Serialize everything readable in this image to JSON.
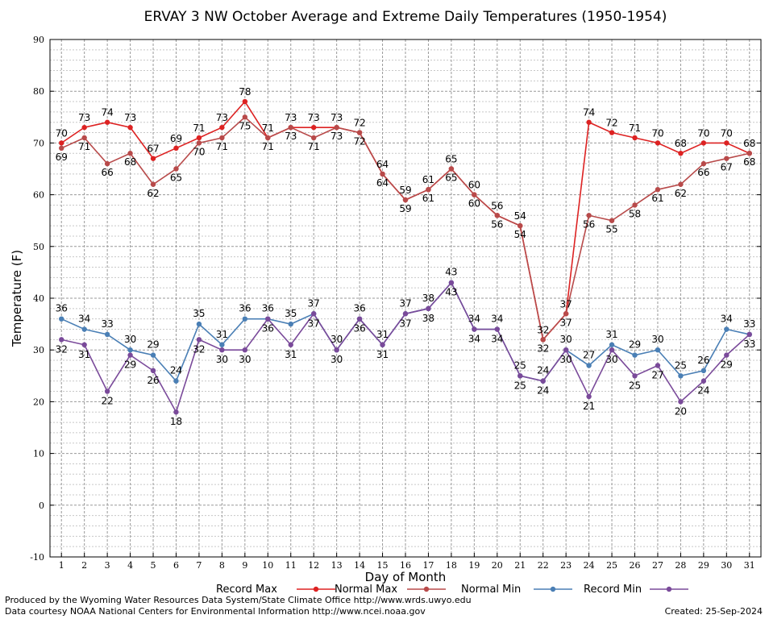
{
  "chart_data": {
    "type": "line",
    "title": "ERVAY 3 NW October Average and Extreme Daily Temperatures (1950-1954)",
    "xlabel": "Day of Month",
    "ylabel": "Temperature (F)",
    "ylim": [
      -10,
      90
    ],
    "yticks": [
      -10,
      0,
      10,
      20,
      30,
      40,
      50,
      60,
      70,
      80,
      90
    ],
    "x": [
      1,
      2,
      3,
      4,
      5,
      6,
      7,
      8,
      9,
      10,
      11,
      12,
      13,
      14,
      15,
      16,
      17,
      18,
      19,
      20,
      21,
      22,
      23,
      24,
      25,
      26,
      27,
      28,
      29,
      30,
      31
    ],
    "grid": true,
    "legend_position": "bottom",
    "series": [
      {
        "name": "Record Max",
        "color": "#dd2222",
        "values": [
          70,
          73,
          74,
          73,
          67,
          69,
          71,
          73,
          78,
          71,
          73,
          73,
          73,
          72,
          64,
          59,
          61,
          65,
          60,
          56,
          54,
          32,
          37,
          74,
          72,
          71,
          70,
          68,
          70,
          70,
          68
        ]
      },
      {
        "name": "Normal Max",
        "color": "#b84a4a",
        "values": [
          69,
          71,
          66,
          68,
          62,
          65,
          70,
          71,
          75,
          71,
          73,
          71,
          73,
          72,
          64,
          59,
          61,
          65,
          60,
          56,
          54,
          32,
          37,
          56,
          55,
          58,
          61,
          62,
          66,
          67,
          68
        ]
      },
      {
        "name": "Normal Min",
        "color": "#4a7fb5",
        "values": [
          36,
          34,
          33,
          30,
          29,
          24,
          35,
          31,
          36,
          36,
          35,
          37,
          30,
          36,
          31,
          37,
          38,
          43,
          34,
          34,
          25,
          24,
          30,
          27,
          31,
          29,
          30,
          25,
          26,
          34,
          33
        ]
      },
      {
        "name": "Record Min",
        "color": "#7a4a9a",
        "values": [
          32,
          31,
          22,
          29,
          26,
          18,
          32,
          30,
          30,
          36,
          31,
          37,
          30,
          36,
          31,
          37,
          38,
          43,
          34,
          34,
          25,
          24,
          30,
          21,
          30,
          25,
          27,
          20,
          24,
          29,
          33
        ]
      }
    ]
  },
  "footer": {
    "line1": "Produced by the Wyoming Water Resources Data System/State Climate Office http://www.wrds.uwyo.edu",
    "line2": "Data courtesy NOAA National Centers for Environmental Information http://www.ncei.noaa.gov",
    "created": "Created:  25-Sep-2024"
  }
}
